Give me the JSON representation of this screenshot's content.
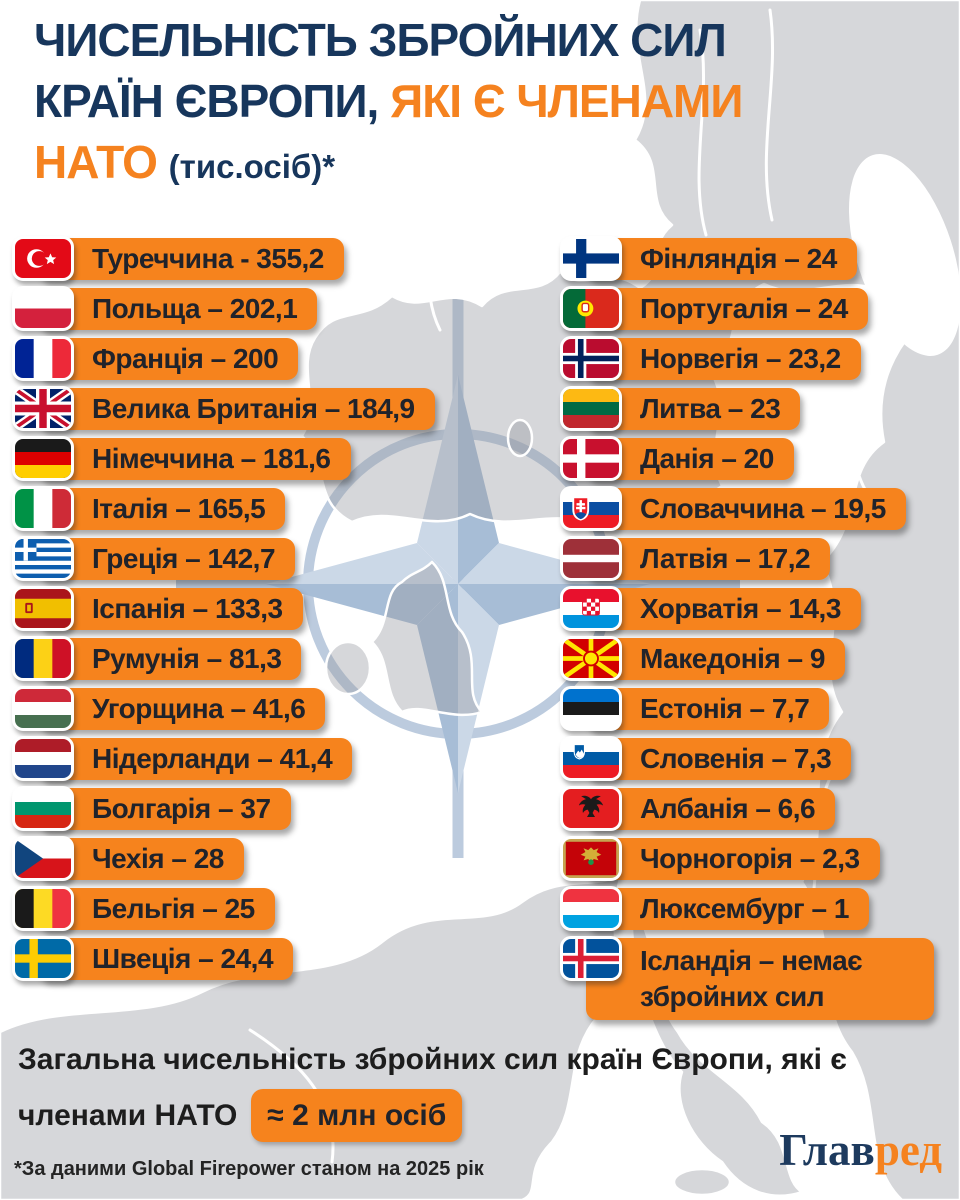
{
  "title": {
    "line1": "ЧИСЕЛЬНІСТЬ ЗБРОЙНИХ СИЛ",
    "line2_dark": "КРАЇН ЄВРОПИ,",
    "line2_orange": "ЯКІ Є ЧЛЕНАМИ",
    "line3_orange": "НАТО",
    "line3_unit": "(тис.осіб)*"
  },
  "columns": {
    "left": [
      {
        "flag": "turkey",
        "label": "Туреччина - 355,2"
      },
      {
        "flag": "poland",
        "label": "Польща – 202,1"
      },
      {
        "flag": "france",
        "label": "Франція – 200"
      },
      {
        "flag": "uk",
        "label": "Велика Британія – 184,9"
      },
      {
        "flag": "germany",
        "label": "Німеччина – 181,6"
      },
      {
        "flag": "italy",
        "label": "Італія – 165,5"
      },
      {
        "flag": "greece",
        "label": "Греція – 142,7"
      },
      {
        "flag": "spain",
        "label": "Іспанія – 133,3"
      },
      {
        "flag": "romania",
        "label": "Румунія – 81,3"
      },
      {
        "flag": "hungary",
        "label": "Угорщина – 41,6"
      },
      {
        "flag": "netherlands",
        "label": "Нідерланди – 41,4"
      },
      {
        "flag": "bulgaria",
        "label": "Болгарія – 37"
      },
      {
        "flag": "czechia",
        "label": "Чехія – 28"
      },
      {
        "flag": "belgium",
        "label": "Бельгія – 25"
      },
      {
        "flag": "sweden",
        "label": "Швеція – 24,4"
      }
    ],
    "right": [
      {
        "flag": "finland",
        "label": "Фінляндія – 24"
      },
      {
        "flag": "portugal",
        "label": "Португалія – 24"
      },
      {
        "flag": "norway",
        "label": "Норвегія – 23,2"
      },
      {
        "flag": "lithuania",
        "label": "Литва – 23"
      },
      {
        "flag": "denmark",
        "label": "Данія – 20"
      },
      {
        "flag": "slovakia",
        "label": "Словаччина – 19,5"
      },
      {
        "flag": "latvia",
        "label": "Латвія – 17,2"
      },
      {
        "flag": "croatia",
        "label": "Хорватія – 14,3"
      },
      {
        "flag": "macedonia",
        "label": "Македонія – 9"
      },
      {
        "flag": "estonia",
        "label": "Естонія – 7,7"
      },
      {
        "flag": "slovenia",
        "label": "Словенія – 7,3"
      },
      {
        "flag": "albania",
        "label": "Албанія – 6,6"
      },
      {
        "flag": "montenegro",
        "label": "Чорногорія – 2,3"
      },
      {
        "flag": "luxembourg",
        "label": "Люксембург – 1"
      },
      {
        "flag": "iceland",
        "label": "Ісландія – немає збройних сил",
        "wide": true
      }
    ]
  },
  "summary": {
    "line1": "Загальна чисельність збройних сил країн Європи, які є",
    "line2": "членами НАТО",
    "badge": "≈ 2 млн осіб"
  },
  "footnote": {
    "text": "*За даними Global Firepower станом на 2025 рік"
  },
  "logo": {
    "part1": "Глав",
    "part2": "ред"
  },
  "colors": {
    "accent_orange": "#F5821F",
    "title_navy": "#17365C",
    "bar_text": "#20232B",
    "map_gray": "#D8D9DB",
    "emblem_blue_light": "#CBD8E7",
    "emblem_blue_dark": "#A7BDD6"
  },
  "chart_data": {
    "type": "bar",
    "title": "Чисельність збройних сил країн Європи, які є членами НАТО",
    "unit": "тис. осіб",
    "categories": [
      "Туреччина",
      "Польща",
      "Франція",
      "Велика Британія",
      "Німеччина",
      "Італія",
      "Греція",
      "Іспанія",
      "Румунія",
      "Угорщина",
      "Нідерланди",
      "Болгарія",
      "Чехія",
      "Бельгія",
      "Швеція",
      "Фінляндія",
      "Португалія",
      "Норвегія",
      "Литва",
      "Данія",
      "Словаччина",
      "Латвія",
      "Хорватія",
      "Македонія",
      "Естонія",
      "Словенія",
      "Албанія",
      "Чорногорія",
      "Люксембург",
      "Ісландія"
    ],
    "values": [
      355.2,
      202.1,
      200,
      184.9,
      181.6,
      165.5,
      142.7,
      133.3,
      81.3,
      41.6,
      41.4,
      37,
      28,
      25,
      24.4,
      24,
      24,
      23.2,
      23,
      20,
      19.5,
      17.2,
      14.3,
      9,
      7.7,
      7.3,
      6.6,
      2.3,
      1,
      0
    ],
    "iceland_note": "немає збройних сил",
    "total": "≈ 2 млн осіб",
    "source": "*За даними Global Firepower станом на 2025 рік"
  }
}
